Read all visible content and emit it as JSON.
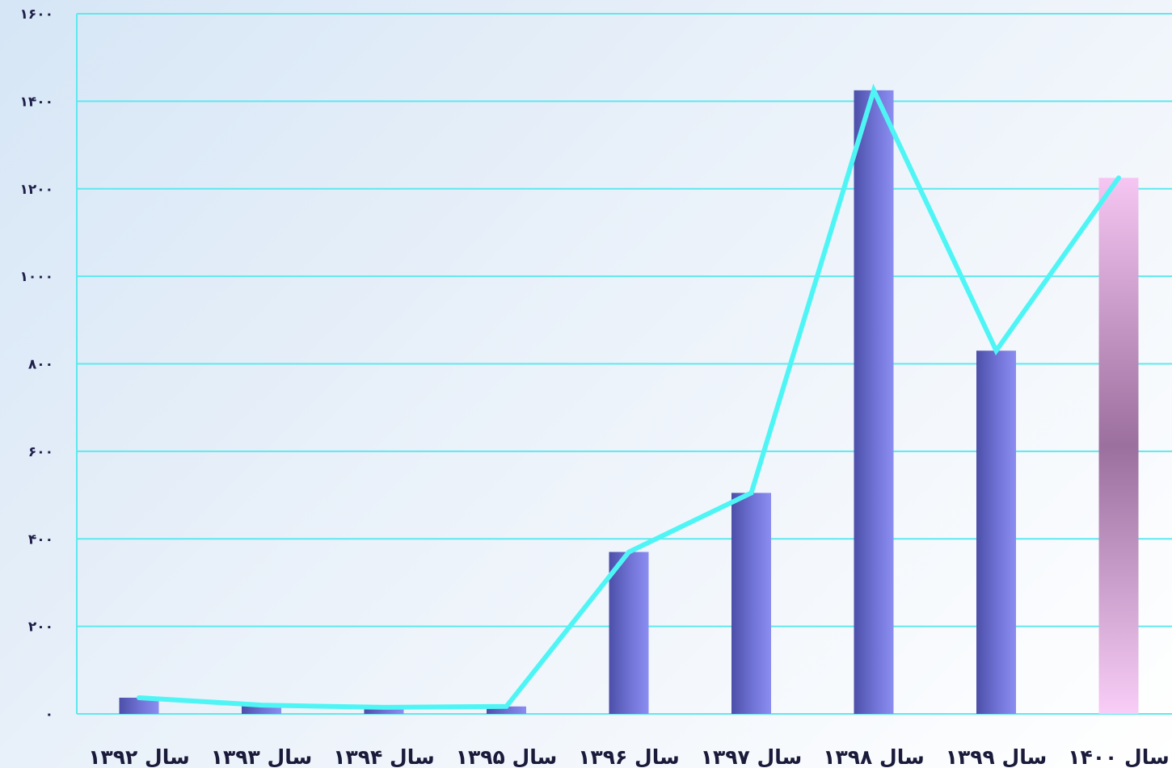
{
  "chart_data": {
    "type": "bar",
    "categories": [
      "سال ۱۳۹۲",
      "سال ۱۳۹۳",
      "سال ۱۳۹۴",
      "سال ۱۳۹۵",
      "سال ۱۳۹۶",
      "سال ۱۳۹۷",
      "سال ۱۳۹۸",
      "سال ۱۳۹۹",
      "سال ۱۴۰۰"
    ],
    "values": [
      37,
      20,
      15,
      17,
      370,
      505,
      1425,
      830,
      1225
    ],
    "line_overlay": [
      37,
      20,
      15,
      17,
      370,
      505,
      1425,
      830,
      1225
    ],
    "ylim": [
      0,
      1600
    ],
    "yticks": [
      0,
      200,
      400,
      600,
      800,
      1000,
      1200,
      1400,
      1600
    ],
    "ytick_labels": [
      "۰",
      "۲۰۰",
      "۴۰۰",
      "۶۰۰",
      "۸۰۰",
      "۱۰۰۰",
      "۱۲۰۰",
      "۱۴۰۰",
      "۱۶۰۰"
    ],
    "grid": true,
    "title": "",
    "xlabel": "",
    "ylabel": "",
    "colors": {
      "bar": "#7b7ee0",
      "bar_dark": "#4c4fa8",
      "highlight_bar_light": "#f6c6f2",
      "highlight_bar_dark": "#9b6f9e",
      "line": "#4ff5f5",
      "grid": "#5ee8ee"
    }
  }
}
